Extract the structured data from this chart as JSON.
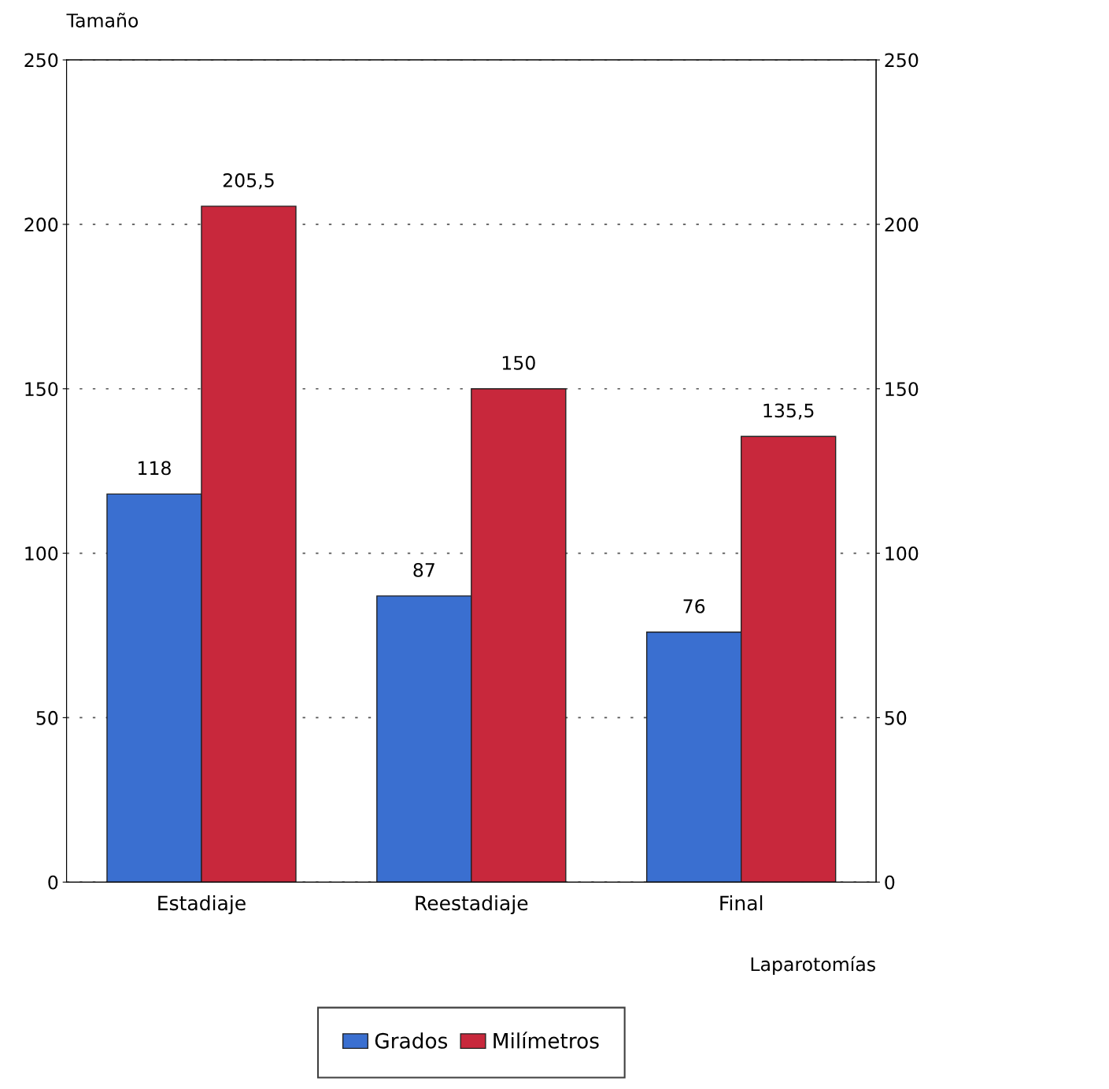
{
  "chart_data": {
    "type": "bar",
    "ylabel": "Tamaño",
    "xlabel": "Laparotomías",
    "categories": [
      "Estadiaje",
      "Reestadiaje",
      "Final"
    ],
    "series": [
      {
        "name": "Grados",
        "color": "#3a6fd0",
        "values": [
          118,
          87,
          76
        ],
        "value_labels": [
          "118",
          "87",
          "76"
        ]
      },
      {
        "name": "Milímetros",
        "color": "#c8283c",
        "values": [
          205.5,
          150,
          135.5
        ],
        "value_labels": [
          "205,5",
          "150",
          "135,5"
        ]
      }
    ],
    "ylim": [
      0,
      250
    ],
    "yticks": [
      0,
      50,
      100,
      150,
      200,
      250
    ],
    "y2lim": [
      0,
      250
    ],
    "y2ticks": [
      0,
      50,
      100,
      150,
      200,
      250
    ],
    "grid": "y",
    "line_style": "dotted",
    "legend": "bottom"
  }
}
